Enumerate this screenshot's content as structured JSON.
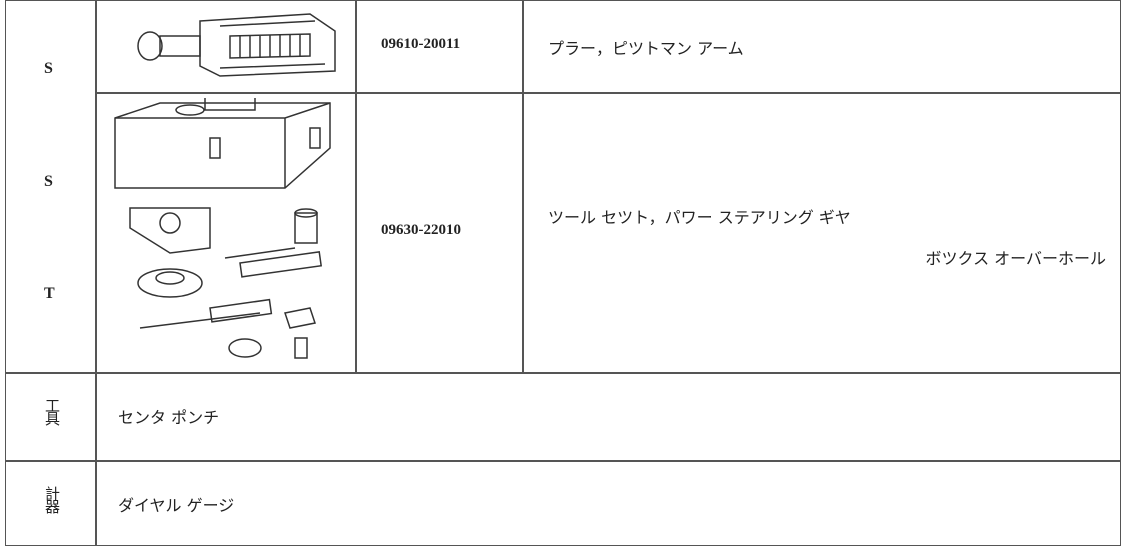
{
  "table": {
    "category_labels": [
      "S",
      "S",
      "T"
    ],
    "rows": [
      {
        "part_no": "09610-20011",
        "name": "プラー，ピツトマン アーム"
      },
      {
        "part_no": "09630-22010",
        "name_lines": [
          "ツール セツト，パワー ステアリング ギヤ",
          "ボツクス オーバーホール"
        ]
      }
    ],
    "tools": {
      "label": "工具",
      "text": "センタ ポンチ"
    },
    "gauges": {
      "label": "計器",
      "text": "ダイヤル ゲージ"
    }
  }
}
